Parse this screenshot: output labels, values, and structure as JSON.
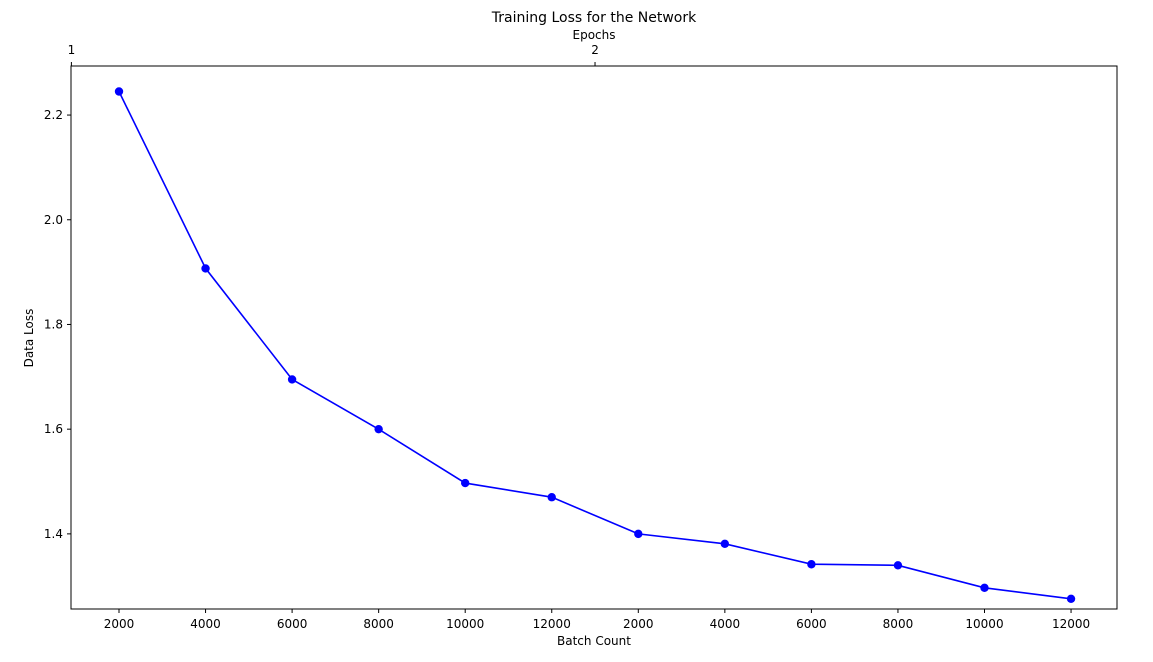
{
  "chart_data": {
    "type": "line",
    "title": "Training Loss for the Network",
    "xlabel": "Batch Count",
    "ylabel": "Data Loss",
    "top_xlabel": "Epochs",
    "categories": [
      "2000",
      "4000",
      "6000",
      "8000",
      "10000",
      "12000",
      "2000",
      "4000",
      "6000",
      "8000",
      "10000",
      "12000"
    ],
    "values": [
      2.245,
      1.907,
      1.695,
      1.6,
      1.497,
      1.47,
      1.4,
      1.381,
      1.342,
      1.34,
      1.297,
      1.276
    ],
    "top_ticks": [
      {
        "label": "1",
        "at_index": -0.55
      },
      {
        "label": "2",
        "at_index": 5.5
      }
    ],
    "yticks": [
      1.4,
      1.6,
      1.8,
      2.0,
      2.2
    ],
    "ylim": [
      1.2565,
      2.2937
    ],
    "grid": false,
    "series_color": "#0000ff",
    "marker": "circle"
  }
}
